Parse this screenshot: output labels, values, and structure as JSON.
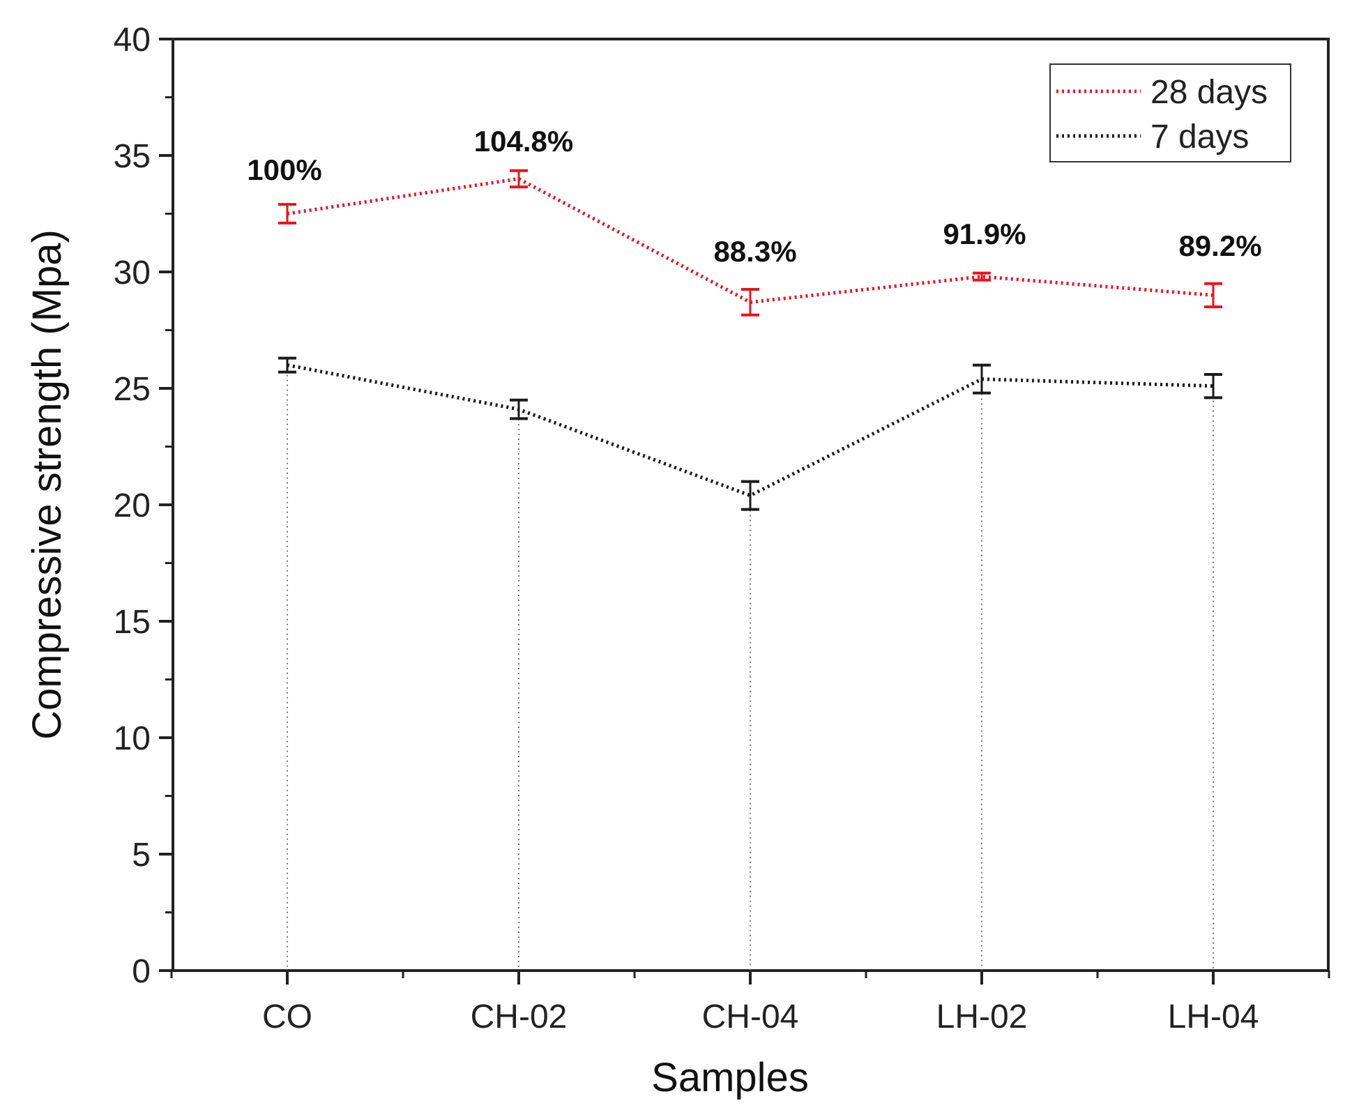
{
  "chart_data": {
    "type": "line",
    "title": "",
    "xlabel": "Samples",
    "ylabel": "Compressive strength (Mpa)",
    "categories": [
      "CO",
      "CH-02",
      "CH-04",
      "LH-02",
      "LH-04"
    ],
    "ylim": [
      0,
      40
    ],
    "yticks": [
      "0",
      "5",
      "10",
      "15",
      "20",
      "25",
      "30",
      "35",
      "40"
    ],
    "grid": false,
    "legend_position": "top-right",
    "series": [
      {
        "name": "28 days",
        "color": "#e8141e",
        "line_style": "dotted",
        "values": [
          32.5,
          34.0,
          28.7,
          29.8,
          29.0
        ],
        "errors": [
          0.4,
          0.35,
          0.55,
          0.15,
          0.5
        ],
        "annotations": [
          "100%",
          "104.8%",
          "88.3%",
          "91.9%",
          "89.2%"
        ]
      },
      {
        "name": "7 days",
        "color": "#1a1a1a",
        "line_style": "dotted",
        "values": [
          26.0,
          24.1,
          20.4,
          25.4,
          25.1
        ],
        "errors": [
          0.3,
          0.4,
          0.6,
          0.6,
          0.5
        ]
      }
    ],
    "drop_lines": true
  }
}
